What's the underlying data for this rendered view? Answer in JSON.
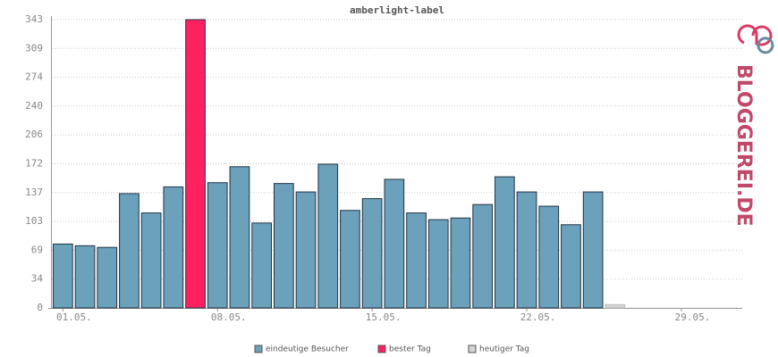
{
  "chart_data": {
    "type": "bar",
    "title": "amberlight-label",
    "watermark": "BLOGGEREI.DE",
    "categories": [
      "01.05.",
      null,
      null,
      null,
      null,
      null,
      null,
      "08.05.",
      null,
      null,
      null,
      null,
      null,
      null,
      "15.05.",
      null,
      null,
      null,
      null,
      null,
      null,
      "22.05.",
      null,
      null,
      null,
      null,
      null,
      null,
      "29.05.",
      null,
      null
    ],
    "series": [
      {
        "name": "eindeutige Besucher",
        "color": "#6ba1ba",
        "values": [
          76,
          74,
          72,
          136,
          113,
          144,
          null,
          149,
          168,
          101,
          148,
          138,
          171,
          116,
          130,
          153,
          113,
          105,
          107,
          123,
          156,
          138,
          121,
          99,
          138,
          null,
          null,
          null,
          null,
          null,
          null
        ]
      },
      {
        "name": "bester Tag",
        "color": "#ff2060",
        "values": [
          null,
          null,
          null,
          null,
          null,
          null,
          343,
          null,
          null,
          null,
          null,
          null,
          null,
          null,
          null,
          null,
          null,
          null,
          null,
          null,
          null,
          null,
          null,
          null,
          null,
          null,
          null,
          null,
          null,
          null,
          null
        ]
      },
      {
        "name": "heutiger Tag",
        "color": "#d4d4d4",
        "values": [
          null,
          null,
          null,
          null,
          null,
          null,
          null,
          null,
          null,
          null,
          null,
          null,
          null,
          null,
          null,
          null,
          null,
          null,
          null,
          null,
          null,
          null,
          null,
          null,
          null,
          4,
          null,
          null,
          null,
          null,
          null
        ]
      }
    ],
    "ylim": [
      0,
      343
    ],
    "yticks": [
      0,
      {
        "value": 34.3,
        "label": "34"
      },
      {
        "value": 68.6,
        "label": "69"
      },
      {
        "value": 102.9,
        "label": "103"
      },
      {
        "value": 137.2,
        "label": "137"
      },
      {
        "value": 171.5,
        "label": "172"
      },
      {
        "value": 205.8,
        "label": "206"
      },
      {
        "value": 240.1,
        "label": "240"
      },
      {
        "value": 274.4,
        "label": "274"
      },
      {
        "value": 308.7,
        "label": "309"
      },
      343
    ],
    "grid": true
  }
}
